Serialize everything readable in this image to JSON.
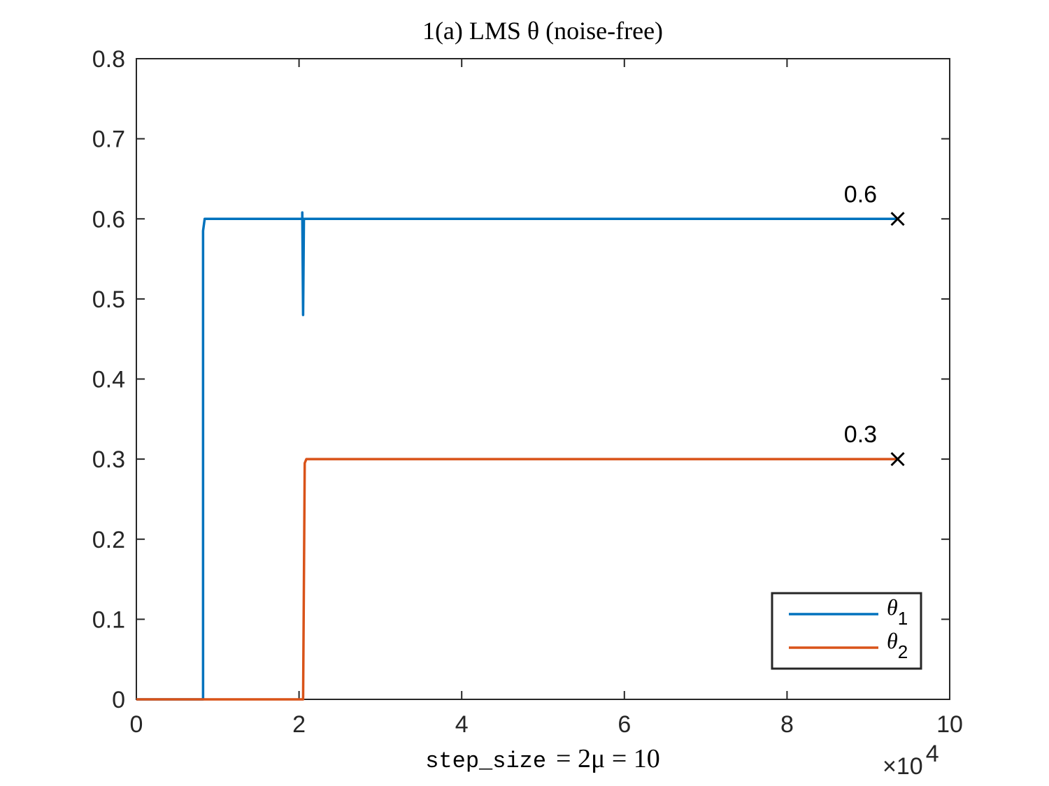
{
  "chart_data": {
    "type": "line",
    "title": "1(a) LMS θ (noise-free)",
    "xlabel": {
      "mono": "step_size",
      "math": "= 2μ = 10"
    },
    "x_exponent": {
      "base": "×10",
      "power": "4"
    },
    "xlim": [
      0,
      10
    ],
    "ylim": [
      0,
      0.8
    ],
    "xticks": [
      0,
      2,
      4,
      6,
      8,
      10
    ],
    "yticks": [
      0,
      0.1,
      0.2,
      0.3,
      0.4,
      0.5,
      0.6,
      0.7,
      0.8
    ],
    "xtick_labels": [
      "0",
      "2",
      "4",
      "6",
      "8",
      "10"
    ],
    "ytick_labels": [
      "0",
      "0.1",
      "0.2",
      "0.3",
      "0.4",
      "0.5",
      "0.6",
      "0.7",
      "0.8"
    ],
    "grid": false,
    "legend_position": "bottom-right",
    "series": [
      {
        "name": "θ",
        "subscript": "1",
        "color": "#0072BD",
        "points": [
          [
            0,
            0
          ],
          [
            0.82,
            0
          ],
          [
            0.82,
            0.585
          ],
          [
            0.84,
            0.6
          ],
          [
            2.04,
            0.6
          ],
          [
            2.04,
            0.608
          ],
          [
            2.05,
            0.48
          ],
          [
            2.06,
            0.6
          ],
          [
            9.36,
            0.6
          ]
        ]
      },
      {
        "name": "θ",
        "subscript": "2",
        "color": "#D95319",
        "points": [
          [
            0,
            0
          ],
          [
            2.05,
            0
          ],
          [
            2.07,
            0.295
          ],
          [
            2.09,
            0.3
          ],
          [
            9.36,
            0.3
          ]
        ]
      }
    ],
    "markers": [
      {
        "x": 9.36,
        "y": 0.6,
        "symbol": "x"
      },
      {
        "x": 9.36,
        "y": 0.3,
        "symbol": "x"
      }
    ],
    "annotations": [
      {
        "text": "0.6",
        "x": 8.7,
        "y": 0.6
      },
      {
        "text": "0.3",
        "x": 8.7,
        "y": 0.3
      }
    ]
  }
}
